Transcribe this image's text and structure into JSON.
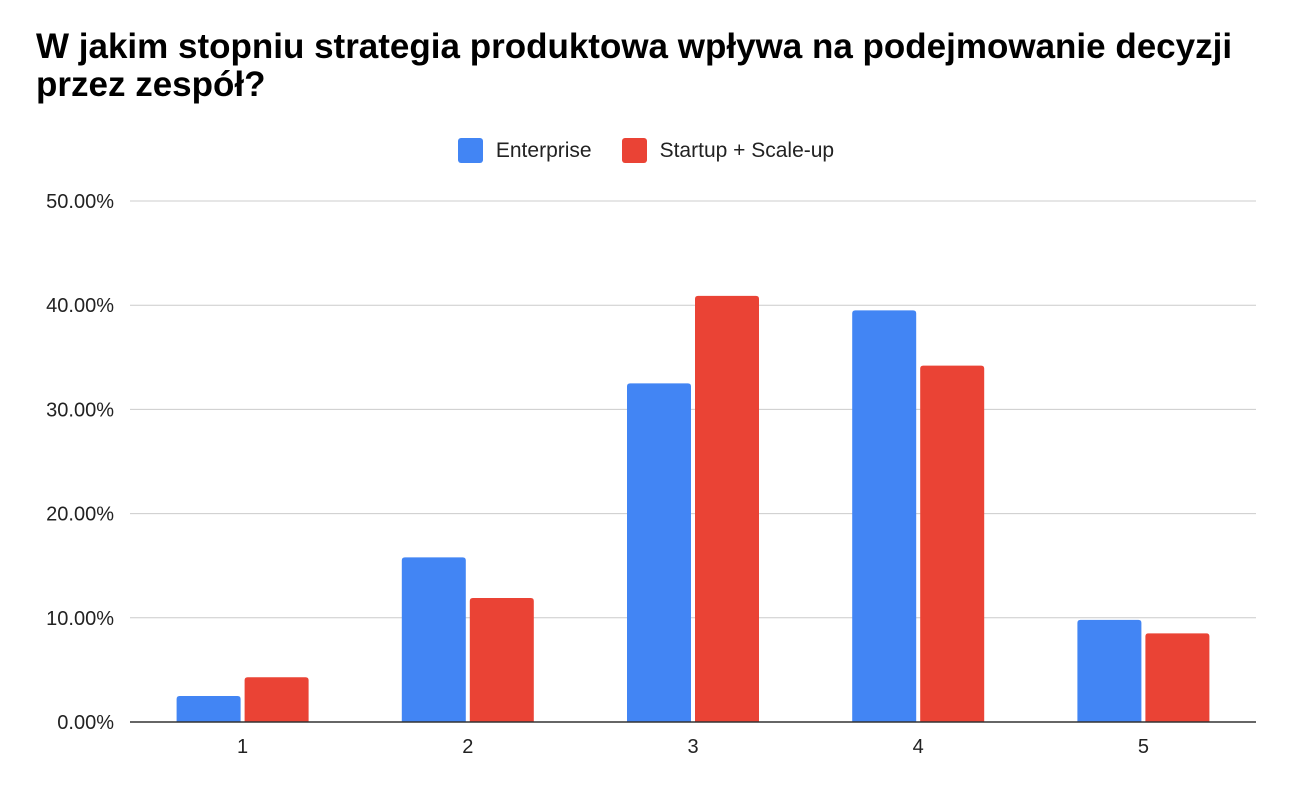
{
  "chart_data": {
    "type": "bar",
    "title": "W jakim stopniu strategia produktowa wpływa na podejmowanie decyzji przez zespół?",
    "xlabel": "",
    "ylabel": "",
    "categories": [
      "1",
      "2",
      "3",
      "4",
      "5"
    ],
    "series": [
      {
        "name": "Enterprise",
        "color": "#4285f4",
        "values": [
          2.5,
          15.8,
          32.5,
          39.5,
          9.8
        ]
      },
      {
        "name": "Startup + Scale-up",
        "color": "#ea4335",
        "values": [
          4.3,
          11.9,
          40.9,
          34.2,
          8.5
        ]
      }
    ],
    "ylim": [
      0,
      50
    ],
    "yticks": [
      "0.00%",
      "10.00%",
      "20.00%",
      "30.00%",
      "40.00%",
      "50.00%"
    ],
    "grid": true,
    "legend_position": "top-center"
  }
}
